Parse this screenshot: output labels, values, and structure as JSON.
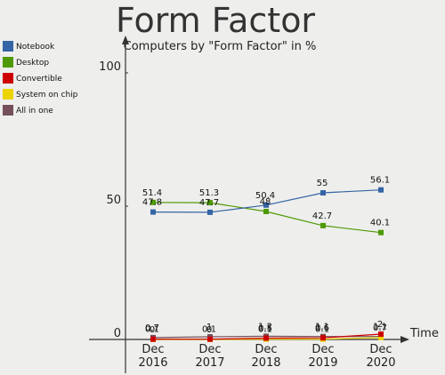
{
  "chart_data": {
    "type": "line",
    "title": "Form Factor",
    "subtitle": "Computers by \"Form Factor\" in %",
    "xlabel": "Time",
    "ylabel": "",
    "categories": [
      "Dec 2016",
      "Dec 2017",
      "Dec 2018",
      "Dec 2019",
      "Dec 2020"
    ],
    "ylim": [
      0,
      120
    ],
    "yticks": [
      0,
      50,
      100
    ],
    "grid": false,
    "legend_position": "top-left",
    "series": [
      {
        "name": "Notebook",
        "color": "#3465a4",
        "values": [
          47.8,
          47.7,
          50.4,
          55,
          56.1
        ]
      },
      {
        "name": "Desktop",
        "color": "#4e9a06",
        "values": [
          51.4,
          51.3,
          48,
          42.7,
          40.1
        ]
      },
      {
        "name": "Convertible",
        "color": "#cc0000",
        "values": [
          0.1,
          0.1,
          0.5,
          0.6,
          2
        ]
      },
      {
        "name": "System on chip",
        "color": "#edd400",
        "values": [
          0,
          0,
          0.1,
          0.1,
          0.7
        ]
      },
      {
        "name": "All in one",
        "color": "#75505b",
        "values": [
          0.7,
          1,
          1.2,
          1.1,
          1.1
        ]
      }
    ]
  }
}
